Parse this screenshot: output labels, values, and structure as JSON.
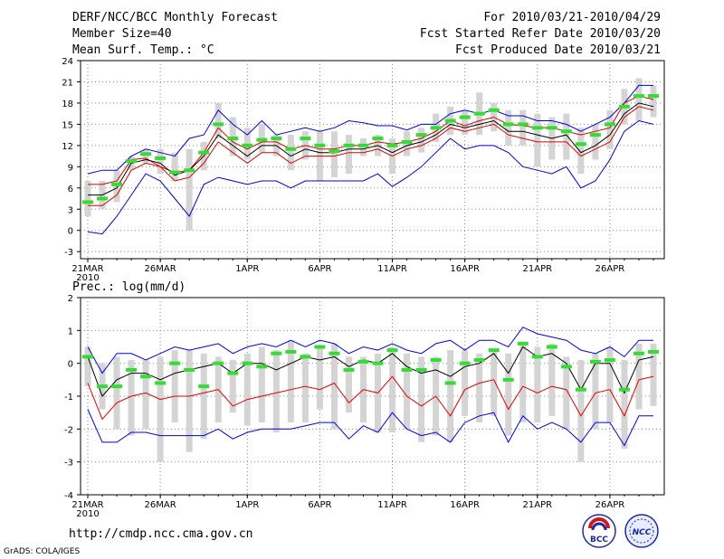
{
  "header": {
    "title": "DERF/NCC/BCC Monthly Forecast",
    "member_size": "Member Size=40",
    "variable": "Mean Surf. Temp.: °C",
    "period": "For 2010/03/21-2010/04/29",
    "refer_date": "Fcst Started Refer Date 2010/03/20",
    "produced_date": "Fcst Produced Date 2010/03/21"
  },
  "footer": {
    "url": "http://cmdp.ncc.cma.gov.cn",
    "grads": "GrADS: COLA/IGES",
    "logo_bcc": "BCC",
    "logo_ncc": "NCC"
  },
  "colors": {
    "max_min": "#0000dd",
    "mean": "#000000",
    "spread": "#dd0000",
    "bar": "#d4d4d4",
    "obs": "#33dd33"
  },
  "chart_data": [
    {
      "type": "line",
      "title": "Mean Surf. Temp.: °C",
      "xlabel": "",
      "ylabel": "°C",
      "ylim": [
        -4,
        24
      ],
      "yticks": [
        24,
        21,
        18,
        15,
        12,
        9,
        6,
        3,
        0,
        -3
      ],
      "xticks": [
        {
          "day": 1,
          "label": "21MAR",
          "sub": "2010"
        },
        {
          "day": 6,
          "label": "26MAR"
        },
        {
          "day": 12,
          "label": "1APR"
        },
        {
          "day": 17,
          "label": "6APR"
        },
        {
          "day": 22,
          "label": "11APR"
        },
        {
          "day": 27,
          "label": "16APR"
        },
        {
          "day": 32,
          "label": "21APR"
        },
        {
          "day": 37,
          "label": "26APR"
        }
      ],
      "x": [
        1,
        2,
        3,
        4,
        5,
        6,
        7,
        8,
        9,
        10,
        11,
        12,
        13,
        14,
        15,
        16,
        17,
        18,
        19,
        20,
        21,
        22,
        23,
        24,
        25,
        26,
        27,
        28,
        29,
        30,
        31,
        32,
        33,
        34,
        35,
        36,
        37,
        38,
        39,
        40
      ],
      "series": [
        {
          "name": "max",
          "values": [
            8,
            8.5,
            8.5,
            10.5,
            11.5,
            11,
            10.5,
            13,
            13.5,
            17,
            15,
            13.5,
            15.5,
            13.5,
            14,
            14.5,
            14,
            14.5,
            15.5,
            15.2,
            14.8,
            14.8,
            14.2,
            15,
            15,
            16.5,
            17,
            16.5,
            17,
            16.2,
            16.2,
            15.5,
            15.5,
            15,
            14,
            15,
            16,
            18,
            20.5,
            20.5
          ]
        },
        {
          "name": "upper",
          "values": [
            6.5,
            6.5,
            7,
            10,
            10.2,
            9,
            8.2,
            8.5,
            11,
            14.5,
            12.5,
            11.5,
            12.5,
            12.5,
            11.5,
            12,
            11.5,
            11.5,
            12,
            12,
            12.5,
            12.2,
            12.5,
            13,
            14,
            15.5,
            14.8,
            15.5,
            16,
            15,
            14.8,
            14.5,
            14.5,
            14,
            13.5,
            14,
            14.5,
            18,
            19,
            18.5
          ]
        },
        {
          "name": "mean",
          "values": [
            5,
            5,
            6,
            9.5,
            10,
            9.5,
            7.8,
            8.5,
            10.5,
            13.5,
            12,
            10.5,
            12,
            12,
            10.5,
            11.5,
            11,
            11,
            11.5,
            11.5,
            12,
            11,
            12,
            12.5,
            13.5,
            15,
            14.5,
            15,
            15.5,
            14,
            14,
            13.5,
            13,
            13.5,
            11,
            12,
            13.5,
            16.5,
            18,
            17.5
          ]
        },
        {
          "name": "lower",
          "values": [
            3.5,
            3.5,
            5,
            8.5,
            9.5,
            9,
            7,
            7.5,
            9.5,
            12.5,
            11,
            9.5,
            11,
            11,
            9.5,
            10.5,
            10.5,
            10.5,
            11,
            11,
            11.5,
            10.5,
            11.5,
            12,
            13,
            14.5,
            14,
            14.5,
            15,
            13.5,
            13,
            12.5,
            12.5,
            12.5,
            10.5,
            11.5,
            12.5,
            16,
            17.5,
            17
          ]
        },
        {
          "name": "min",
          "values": [
            -0.2,
            -0.5,
            2,
            5,
            8,
            7,
            4.5,
            2,
            6.5,
            7.5,
            7,
            6.5,
            7,
            7,
            6,
            7,
            7,
            7,
            7,
            7,
            8,
            6.2,
            7.5,
            9,
            11,
            13,
            11.5,
            12,
            12,
            11,
            9,
            8.5,
            8,
            9,
            6,
            7,
            10,
            14,
            15.5,
            15
          ]
        }
      ],
      "bars_low": [
        2,
        3,
        4,
        8.5,
        9.5,
        8,
        7,
        0,
        8.5,
        13,
        10.5,
        10,
        11,
        10.5,
        8.5,
        10,
        7,
        7.5,
        8,
        10.5,
        10.5,
        8,
        10.5,
        11,
        12.5,
        13.5,
        13.5,
        13.5,
        14,
        12,
        12,
        9,
        10,
        10,
        8,
        10,
        11.5,
        15,
        15.5,
        16
      ],
      "bars_high": [
        7,
        7,
        8.5,
        10.5,
        11.5,
        11.5,
        11,
        11.5,
        12.5,
        18,
        16,
        14.5,
        15,
        13.5,
        13.5,
        14,
        14,
        14,
        13.5,
        13,
        13.5,
        13,
        14,
        14.5,
        16.5,
        17.5,
        17,
        19.5,
        18,
        17,
        17,
        16.5,
        16,
        16.5,
        14.5,
        15,
        17,
        20,
        21.5,
        20.5
      ],
      "obs": [
        4,
        4.5,
        6.5,
        9.8,
        10.8,
        10.2,
        8.2,
        8.5,
        11,
        15,
        13,
        12,
        12.8,
        13,
        11.5,
        13,
        12,
        11.2,
        12,
        12,
        13,
        12,
        12.5,
        13.5,
        14.5,
        15.5,
        16,
        16.5,
        17,
        15,
        15,
        14.5,
        14.5,
        14,
        12.2,
        13.5,
        15,
        17.5,
        19,
        19
      ]
    },
    {
      "type": "line",
      "title": "Prec.: log(mm/d)",
      "xlabel": "",
      "ylabel": "log(mm/d)",
      "ylim": [
        -4,
        2
      ],
      "yticks": [
        2,
        1,
        0,
        -1,
        -2,
        -3,
        -4
      ],
      "xticks": [
        {
          "day": 1,
          "label": "21MAR",
          "sub": "2010"
        },
        {
          "day": 6,
          "label": "26MAR"
        },
        {
          "day": 12,
          "label": "1APR"
        },
        {
          "day": 17,
          "label": "6APR"
        },
        {
          "day": 22,
          "label": "11APR"
        },
        {
          "day": 27,
          "label": "16APR"
        },
        {
          "day": 32,
          "label": "21APR"
        },
        {
          "day": 37,
          "label": "26APR"
        }
      ],
      "x": [
        1,
        2,
        3,
        4,
        5,
        6,
        7,
        8,
        9,
        10,
        11,
        12,
        13,
        14,
        15,
        16,
        17,
        18,
        19,
        20,
        21,
        22,
        23,
        24,
        25,
        26,
        27,
        28,
        29,
        30,
        31,
        32,
        33,
        34,
        35,
        36,
        37,
        38,
        39,
        40
      ],
      "series": [
        {
          "name": "max",
          "values": [
            0.5,
            -0.3,
            0.3,
            0.3,
            0.1,
            0.3,
            0.5,
            0.4,
            0.5,
            0.6,
            0.3,
            0.5,
            0.6,
            0.5,
            0.7,
            0.5,
            0.7,
            0.6,
            0.3,
            0.5,
            0.4,
            0.6,
            0.4,
            0.3,
            0.6,
            0.7,
            0.4,
            0.7,
            0.7,
            0.5,
            1.1,
            0.9,
            0.8,
            0.7,
            0.4,
            0.3,
            0.5,
            0.2,
            0.7,
            0.7
          ]
        },
        {
          "name": "mean",
          "values": [
            0.2,
            -1,
            -0.5,
            -0.3,
            -0.3,
            -0.5,
            -0.3,
            -0.2,
            -0.1,
            0,
            -0.3,
            0,
            0,
            -0.2,
            0,
            0.2,
            0.1,
            0.2,
            -0.1,
            0.1,
            0,
            0.3,
            -0.1,
            -0.3,
            -0.2,
            -0.4,
            -0.1,
            0,
            0.3,
            -0.3,
            0.5,
            0.2,
            0.3,
            0,
            -0.8,
            0,
            0,
            -0.9,
            0.1,
            0.2
          ]
        },
        {
          "name": "spread",
          "values": [
            -0.6,
            -1.7,
            -1.2,
            -1,
            -0.9,
            -1.1,
            -1,
            -1,
            -0.9,
            -0.8,
            -1.3,
            -1.1,
            -1,
            -0.9,
            -0.8,
            -0.7,
            -0.8,
            -0.6,
            -1.2,
            -0.8,
            -0.9,
            -0.4,
            -1,
            -1.3,
            -1,
            -1.6,
            -0.8,
            -0.6,
            -0.5,
            -1.4,
            -0.7,
            -0.9,
            -0.7,
            -0.8,
            -1.6,
            -0.9,
            -0.8,
            -1.6,
            -0.5,
            -0.4
          ]
        },
        {
          "name": "min",
          "values": [
            -1.4,
            -2.4,
            -2.4,
            -2.1,
            -2.1,
            -2.2,
            -2.2,
            -2.2,
            -2.2,
            -2,
            -2.3,
            -2.1,
            -2,
            -2,
            -2,
            -1.9,
            -1.8,
            -1.8,
            -2.3,
            -1.9,
            -2.1,
            -1.5,
            -2,
            -2.2,
            -2.1,
            -2.4,
            -1.8,
            -1.6,
            -1.5,
            -2.4,
            -1.6,
            -2,
            -1.8,
            -2,
            -2.4,
            -1.8,
            -1.8,
            -2.5,
            -1.6,
            -1.6
          ]
        }
      ],
      "bars_low": [
        -0.7,
        -1.4,
        -2,
        -2.2,
        -2,
        -3,
        -1.8,
        -2.7,
        -2.3,
        -1.8,
        -1.5,
        -1.9,
        -1.8,
        -2.1,
        -1.8,
        -1.8,
        -1.4,
        -2,
        -1.5,
        -1.8,
        -2.1,
        -2.1,
        -2,
        -2.4,
        -2.2,
        -2.4,
        -1.6,
        -1.8,
        -1.6,
        -2.2,
        -1.8,
        -1.8,
        -1.6,
        -2,
        -3,
        -2,
        -1.8,
        -2.6,
        -1.4,
        -1.3
      ],
      "bars_high": [
        0.5,
        0,
        0.2,
        0.1,
        0.1,
        0.2,
        0.4,
        0.4,
        0.3,
        0.2,
        0.1,
        0.3,
        0.5,
        0.4,
        0.7,
        0.3,
        0.5,
        0.6,
        0.2,
        0.2,
        0.3,
        0.5,
        0.3,
        0.2,
        0.2,
        0.4,
        0.4,
        0.3,
        0.4,
        0.3,
        0.6,
        0.5,
        0.6,
        0.2,
        0.1,
        0.3,
        0.5,
        0.1,
        0.6,
        0.6
      ],
      "obs": [
        0.2,
        -0.7,
        -0.7,
        -0.2,
        -0.4,
        -0.6,
        0,
        -0.2,
        -0.7,
        0,
        -0.3,
        0,
        -0.1,
        0.3,
        0.35,
        0.2,
        0.5,
        0.3,
        -0.2,
        0.05,
        0,
        0.4,
        -0.2,
        -0.2,
        0.1,
        -0.6,
        0,
        0.1,
        0.4,
        -0.5,
        0.6,
        0.2,
        0.5,
        -0.1,
        -0.8,
        0.05,
        0.1,
        -0.8,
        0.3,
        0.35
      ]
    }
  ]
}
